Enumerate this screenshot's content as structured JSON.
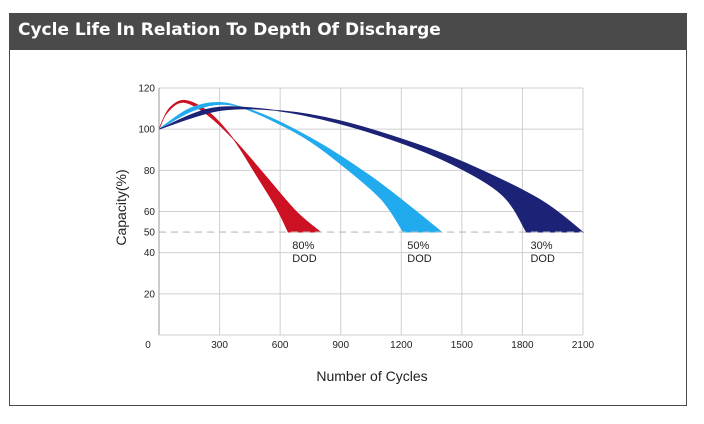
{
  "header": {
    "title": "Cycle Life In Relation To Depth Of Discharge"
  },
  "chart_data": {
    "type": "area",
    "xlabel": "Number of Cycles",
    "ylabel": "Capacity(%)",
    "xlim": [
      0,
      2100
    ],
    "ylim": [
      0,
      120
    ],
    "x_ticks": [
      0,
      300,
      600,
      900,
      1200,
      1500,
      1800,
      2100
    ],
    "y_ticks": [
      20,
      40,
      50,
      60,
      80,
      100,
      120
    ],
    "x_tick_labels": [
      "0",
      "300",
      "600",
      "900",
      "1200",
      "1500",
      "1800",
      "2100"
    ],
    "y_tick_labels": [
      "20",
      "40",
      "50",
      "60",
      "80",
      "100",
      "120"
    ],
    "grid": true,
    "reference_line": {
      "y": 50,
      "style": "dashed"
    },
    "series": [
      {
        "name": "80% DOD",
        "label_lines": [
          "80%",
          "DOD"
        ],
        "color": "#cc1122",
        "upper": [
          [
            0,
            100
          ],
          [
            50,
            110
          ],
          [
            130,
            114
          ],
          [
            250,
            108
          ],
          [
            370,
            95
          ],
          [
            480,
            78
          ],
          [
            580,
            62
          ],
          [
            640,
            50
          ]
        ],
        "lower": [
          [
            0,
            100
          ],
          [
            40,
            108
          ],
          [
            120,
            113
          ],
          [
            240,
            107
          ],
          [
            380,
            94
          ],
          [
            530,
            77
          ],
          [
            680,
            60
          ],
          [
            800,
            50
          ]
        ]
      },
      {
        "name": "50% DOD",
        "label_lines": [
          "50%",
          "DOD"
        ],
        "color": "#22aaee",
        "upper": [
          [
            0,
            100
          ],
          [
            150,
            110
          ],
          [
            300,
            113
          ],
          [
            450,
            109
          ],
          [
            700,
            97
          ],
          [
            900,
            83
          ],
          [
            1100,
            66
          ],
          [
            1210,
            50
          ]
        ],
        "lower": [
          [
            0,
            100
          ],
          [
            170,
            109
          ],
          [
            330,
            112
          ],
          [
            520,
            107
          ],
          [
            800,
            93
          ],
          [
            1050,
            77
          ],
          [
            1250,
            62
          ],
          [
            1400,
            50
          ]
        ]
      },
      {
        "name": "30% DOD",
        "label_lines": [
          "30%",
          "DOD"
        ],
        "color": "#1c2275",
        "upper": [
          [
            0,
            100
          ],
          [
            250,
            110
          ],
          [
            500,
            110
          ],
          [
            800,
            105
          ],
          [
            1150,
            95
          ],
          [
            1450,
            83
          ],
          [
            1700,
            68
          ],
          [
            1820,
            50
          ]
        ],
        "lower": [
          [
            0,
            100
          ],
          [
            300,
            109
          ],
          [
            600,
            109
          ],
          [
            900,
            104
          ],
          [
            1300,
            92
          ],
          [
            1600,
            80
          ],
          [
            1900,
            65
          ],
          [
            2100,
            50
          ]
        ]
      }
    ]
  }
}
